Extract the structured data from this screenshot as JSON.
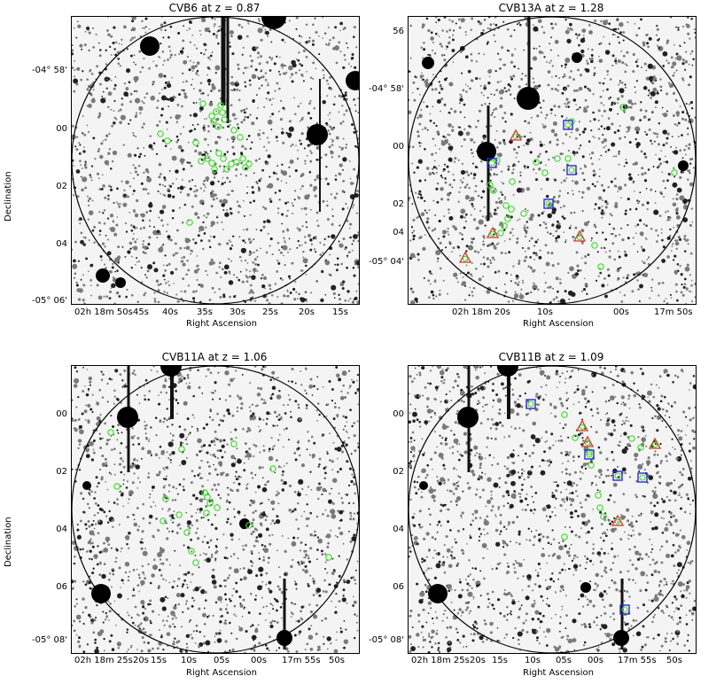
{
  "panels": [
    {
      "id": "cvb6",
      "title": "CVB6 at z = 0.87",
      "ylabel": "Declination",
      "xlabel": "Right Ascension",
      "yticks": [
        "-04° 58'",
        "00",
        "02",
        "04",
        "-05° 06'"
      ],
      "xticks": [
        "02h 18m 50s",
        "45s",
        "40s",
        "35s",
        "30s",
        "25s",
        "20s",
        "15s"
      ]
    },
    {
      "id": "cvb13a",
      "title": "CVB13A at z = 1.28",
      "ylabel": "",
      "xlabel": "Right Ascension",
      "yticks": [
        "56",
        "-04° 58'",
        "00",
        "02",
        "04",
        "-05° 04'"
      ],
      "xticks": [
        "02h 18m 20s",
        "10s",
        "00s",
        "17m 50s"
      ]
    },
    {
      "id": "cvb11a",
      "title": "CVB11A at z = 1.06",
      "ylabel": "Declination",
      "xlabel": "Right Ascension",
      "yticks": [
        "00",
        "02",
        "04",
        "06",
        "-05° 08'"
      ],
      "xticks": [
        "02h 18m 25s",
        "20s",
        "15s",
        "10s",
        "05s",
        "00s",
        "17m 55s",
        "50s"
      ]
    },
    {
      "id": "cvb11b",
      "title": "CVB11B at z = 1.09",
      "ylabel": "",
      "xlabel": "Right Ascension",
      "yticks": [
        "00",
        "02",
        "04",
        "06",
        "-05° 08'"
      ],
      "xticks": [
        "02h 18m 25s",
        "20s",
        "15s",
        "10s",
        "05s",
        "00s",
        "17m 55s",
        "50s"
      ]
    }
  ],
  "colors": {
    "circle_marker": "#3ddc2a",
    "triangle_marker": "#d2361f",
    "square_marker": "#2a2ad6",
    "sky": "#f4f4f4"
  }
}
